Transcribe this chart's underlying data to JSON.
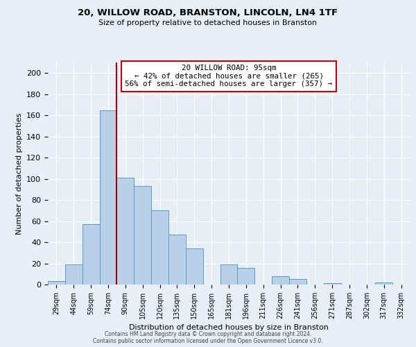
{
  "title": "20, WILLOW ROAD, BRANSTON, LINCOLN, LN4 1TF",
  "subtitle": "Size of property relative to detached houses in Branston",
  "xlabel": "Distribution of detached houses by size in Branston",
  "ylabel": "Number of detached properties",
  "bar_labels": [
    "29sqm",
    "44sqm",
    "59sqm",
    "74sqm",
    "90sqm",
    "105sqm",
    "120sqm",
    "135sqm",
    "150sqm",
    "165sqm",
    "181sqm",
    "196sqm",
    "211sqm",
    "226sqm",
    "241sqm",
    "256sqm",
    "271sqm",
    "287sqm",
    "302sqm",
    "317sqm",
    "332sqm"
  ],
  "bar_values": [
    3,
    19,
    57,
    165,
    101,
    93,
    70,
    47,
    34,
    0,
    19,
    16,
    0,
    8,
    5,
    0,
    1,
    0,
    0,
    2,
    0
  ],
  "bar_color": "#b8d0e8",
  "bar_edge_color": "#5a9abf",
  "marker_bin_index": 4,
  "marker_line_color": "#aa0000",
  "ylim": [
    0,
    210
  ],
  "yticks": [
    0,
    20,
    40,
    60,
    80,
    100,
    120,
    140,
    160,
    180,
    200
  ],
  "annotation_title": "20 WILLOW ROAD: 95sqm",
  "annotation_line1": "← 42% of detached houses are smaller (265)",
  "annotation_line2": "56% of semi-detached houses are larger (357) →",
  "annotation_box_color": "#ffffff",
  "annotation_box_edge": "#cc0000",
  "footer1": "Contains HM Land Registry data © Crown copyright and database right 2024.",
  "footer2": "Contains public sector information licensed under the Open Government Licence v3.0.",
  "background_color": "#e8eef5",
  "plot_background": "#e8eef5"
}
